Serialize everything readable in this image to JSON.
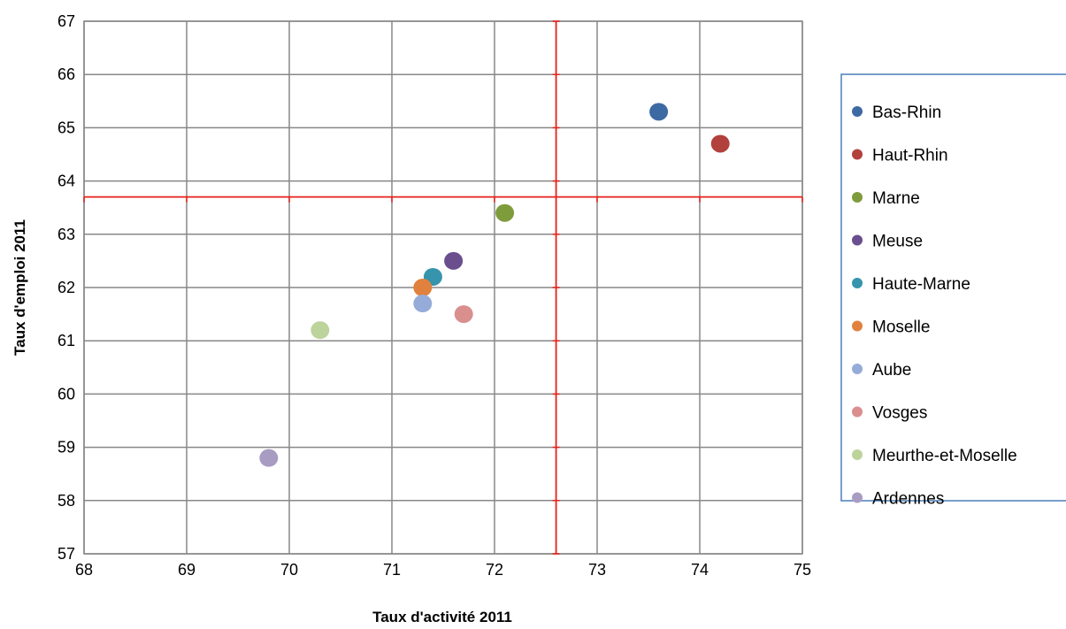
{
  "chart_data": {
    "type": "scatter",
    "title": "",
    "xlabel": "Taux d'activité  2011",
    "ylabel": "Taux d'emploi 2011",
    "xlim": [
      68,
      75
    ],
    "ylim": [
      57,
      67
    ],
    "x_ticks": [
      68,
      69,
      70,
      71,
      72,
      73,
      74,
      75
    ],
    "y_ticks": [
      57,
      58,
      59,
      60,
      61,
      62,
      63,
      64,
      65,
      66,
      67
    ],
    "grid": true,
    "legend_position": "right",
    "reference_lines": {
      "x": 72.6,
      "y": 63.7,
      "color": "#e8211b"
    },
    "series": [
      {
        "name": "Bas-Rhin",
        "x": 73.6,
        "y": 65.3,
        "color": "#3e6aa4"
      },
      {
        "name": "Haut-Rhin",
        "x": 74.2,
        "y": 64.7,
        "color": "#b2403d"
      },
      {
        "name": "Marne",
        "x": 72.1,
        "y": 63.4,
        "color": "#7f9c3c"
      },
      {
        "name": "Meuse",
        "x": 71.6,
        "y": 62.5,
        "color": "#6a4e8e"
      },
      {
        "name": "Haute-Marne",
        "x": 71.4,
        "y": 62.2,
        "color": "#3694ad"
      },
      {
        "name": "Moselle",
        "x": 71.3,
        "y": 62.0,
        "color": "#e0823d"
      },
      {
        "name": "Aube",
        "x": 71.3,
        "y": 61.7,
        "color": "#95acd9"
      },
      {
        "name": "Vosges",
        "x": 71.7,
        "y": 61.5,
        "color": "#d98f8e"
      },
      {
        "name": "Meurthe-et-Moselle",
        "x": 70.3,
        "y": 61.2,
        "color": "#bcd49c"
      },
      {
        "name": "Ardennes",
        "x": 69.8,
        "y": 58.8,
        "color": "#a89cc3"
      }
    ]
  }
}
